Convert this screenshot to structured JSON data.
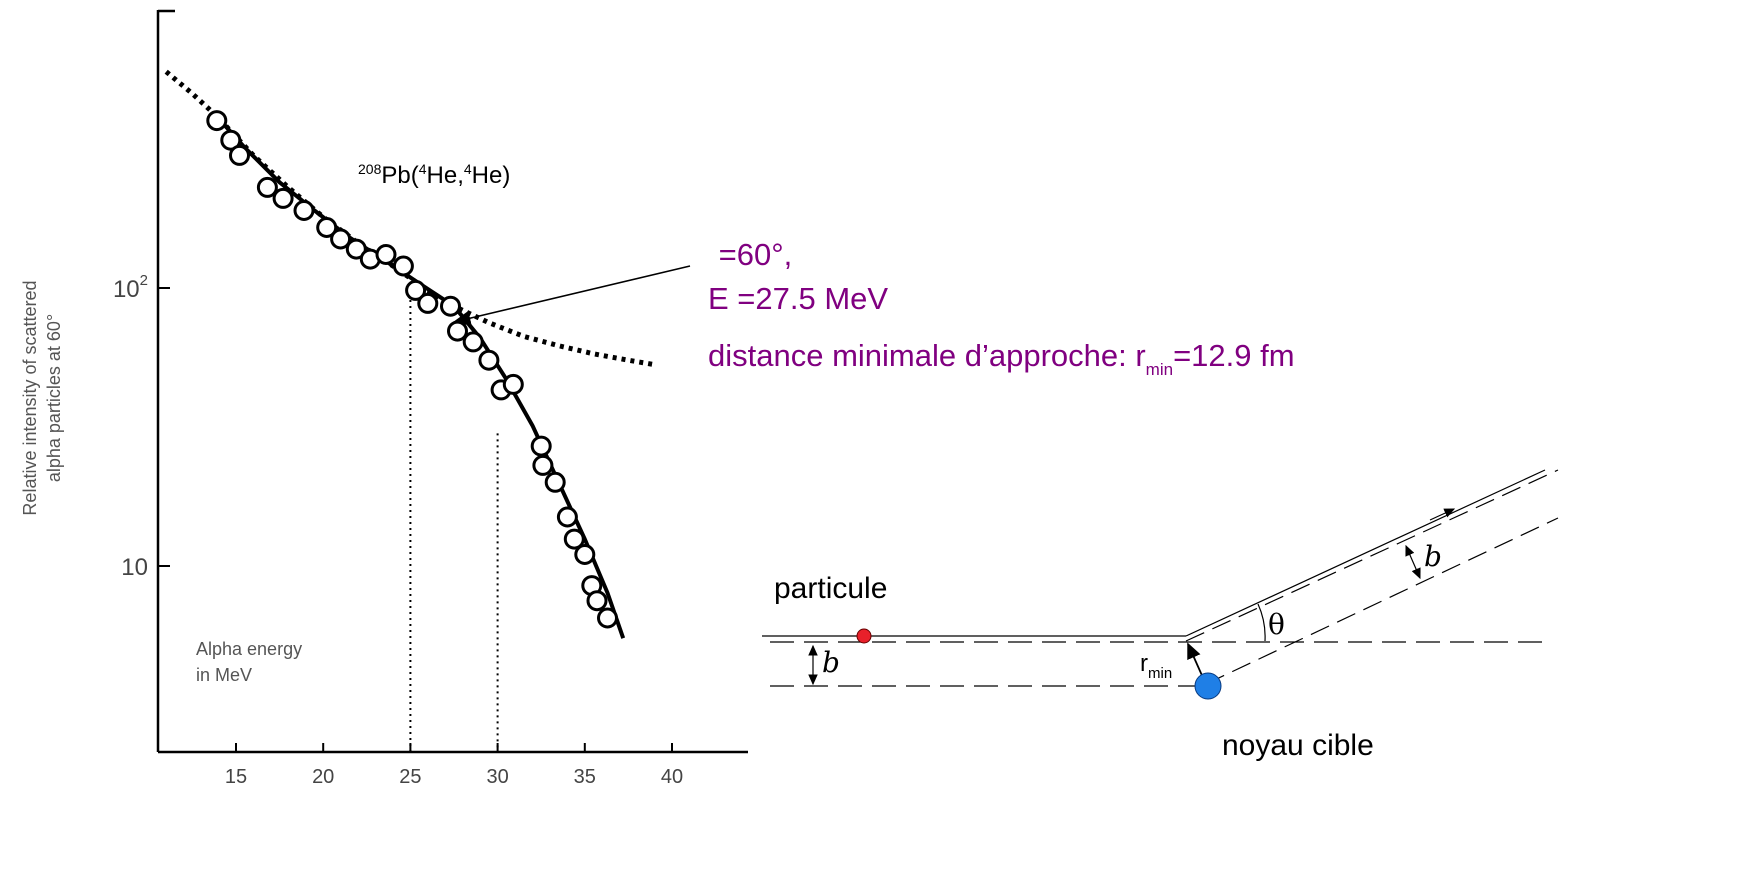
{
  "chart_data": {
    "type": "scatter",
    "ylabel_line1": "Relative intensity of scattered",
    "ylabel_line2": "alpha particles at 60°",
    "y_scale": "log",
    "x_ticks": [
      15,
      20,
      25,
      30,
      35,
      40
    ],
    "y_ticks": [
      {
        "value": 100,
        "base": "10",
        "exp": "2"
      },
      {
        "value": 10,
        "label": "10"
      }
    ],
    "in_plot_label_line1": "Alpha energy",
    "in_plot_label_line2": "in MeV",
    "reaction": {
      "a": "208",
      "b": "Pb(",
      "c": "4",
      "d": "He,",
      "e": "4",
      "f": "He)"
    },
    "series": [
      {
        "kind": "measured",
        "points": [
          [
            13.9,
            400
          ],
          [
            14.7,
            340
          ],
          [
            15.2,
            300
          ],
          [
            16.8,
            230
          ],
          [
            17.7,
            210
          ],
          [
            18.9,
            190
          ],
          [
            20.2,
            165
          ],
          [
            21.0,
            150
          ],
          [
            21.9,
            138
          ],
          [
            22.7,
            127
          ],
          [
            23.6,
            132
          ],
          [
            24.6,
            120
          ],
          [
            25.3,
            98
          ],
          [
            26.0,
            88
          ],
          [
            27.3,
            86
          ],
          [
            27.7,
            70
          ],
          [
            28.6,
            64
          ],
          [
            29.5,
            55
          ],
          [
            30.2,
            43
          ],
          [
            30.9,
            45
          ],
          [
            32.5,
            27
          ],
          [
            32.6,
            23
          ],
          [
            33.3,
            20
          ],
          [
            34.0,
            15
          ],
          [
            34.4,
            12.5
          ],
          [
            35.0,
            11
          ],
          [
            35.4,
            8.5
          ],
          [
            35.7,
            7.5
          ],
          [
            36.3,
            6.5
          ]
        ]
      },
      {
        "kind": "fit",
        "points": [
          [
            13.9,
            415
          ],
          [
            15.5,
            320
          ],
          [
            17.5,
            240
          ],
          [
            19.5,
            190
          ],
          [
            21.5,
            152
          ],
          [
            23.5,
            126
          ],
          [
            25.5,
            104
          ],
          [
            27.5,
            86
          ],
          [
            29.0,
            66
          ],
          [
            30.5,
            47
          ],
          [
            32.0,
            32
          ],
          [
            33.5,
            20
          ],
          [
            35.0,
            12.5
          ],
          [
            36.3,
            8
          ],
          [
            37.2,
            5.5
          ]
        ]
      },
      {
        "kind": "coulomb",
        "points": [
          [
            11.0,
            600
          ],
          [
            12.5,
            500
          ],
          [
            13.9,
            415
          ],
          [
            16,
            300
          ],
          [
            18,
            230
          ],
          [
            20,
            180
          ],
          [
            22,
            145
          ],
          [
            24,
            120
          ],
          [
            26,
            98
          ],
          [
            27.5,
            86
          ],
          [
            29.5,
            75
          ],
          [
            31.5,
            67
          ],
          [
            33.5,
            62
          ],
          [
            35.5,
            58
          ],
          [
            37.5,
            55
          ],
          [
            39.0,
            53
          ]
        ]
      }
    ],
    "vertical_markers": [
      {
        "x": 25,
        "y": 100
      },
      {
        "x": 30,
        "y": 30
      }
    ]
  },
  "annotation": {
    "line1": " =60°,",
    "line2": "E =27.5 MeV",
    "line3_a": "distance minimale d’approche: r",
    "line3_sub": "min",
    "line3_b": "=12.9 fm",
    "color": "#800080"
  },
  "diagram": {
    "particle_label": "particule",
    "target_label": "noyau cible",
    "b_symbol": "b",
    "theta_symbol": "θ",
    "r_main": "r",
    "r_sub": "min",
    "particle_color": "#e8202a",
    "target_color": "#1f7fe6"
  }
}
